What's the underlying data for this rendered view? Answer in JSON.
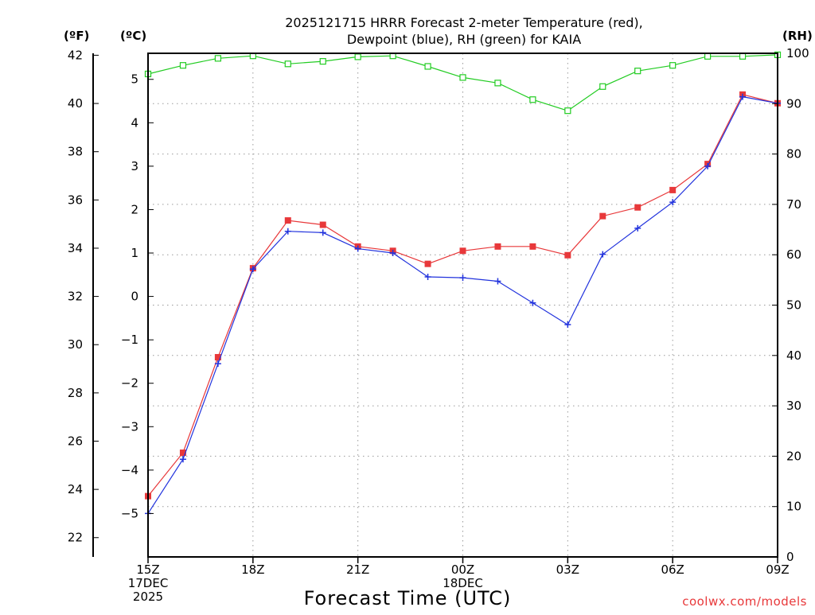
{
  "title_lines": [
    "2025121715 HRRR Forecast 2-meter Temperature (red),",
    "Dewpoint (blue), RH (green) for KAIA"
  ],
  "units": {
    "f": "(ºF)",
    "c": "(ºC)",
    "rh": "(RH)"
  },
  "xlabel": "Forecast Time (UTC)",
  "credit": "coolwx.com/models",
  "colors": {
    "temp": "#e8383a",
    "dewpoint": "#2233dd",
    "rh": "#22cc22"
  },
  "chart_data": {
    "type": "line",
    "title": "2025121715 HRRR Forecast 2-meter Temperature (red), Dewpoint (blue), RH (green) for KAIA",
    "xlabel": "Forecast Time (UTC)",
    "x": [
      "15Z",
      "16Z",
      "17Z",
      "18Z",
      "19Z",
      "20Z",
      "21Z",
      "22Z",
      "23Z",
      "00Z",
      "01Z",
      "02Z",
      "03Z",
      "04Z",
      "05Z",
      "06Z",
      "07Z",
      "08Z",
      "09Z"
    ],
    "x_ticks": [
      {
        "index": 0,
        "lines": [
          "15Z",
          "17DEC",
          "2025"
        ]
      },
      {
        "index": 3,
        "lines": [
          "18Z"
        ]
      },
      {
        "index": 6,
        "lines": [
          "21Z"
        ]
      },
      {
        "index": 9,
        "lines": [
          "00Z",
          "18DEC"
        ]
      },
      {
        "index": 12,
        "lines": [
          "03Z"
        ]
      },
      {
        "index": 15,
        "lines": [
          "06Z"
        ]
      },
      {
        "index": 18,
        "lines": [
          "09Z"
        ]
      }
    ],
    "y_left_c": {
      "label": "(ºC)",
      "ylim": [
        -6.0,
        5.6
      ],
      "ticks": [
        -5,
        -4,
        -3,
        -2,
        -1,
        0,
        1,
        2,
        3,
        4,
        5
      ]
    },
    "y_left_f": {
      "label": "(ºF)",
      "ticks": [
        22,
        24,
        26,
        28,
        30,
        32,
        34,
        36,
        38,
        40,
        42
      ]
    },
    "y_right_rh": {
      "label": "(RH)",
      "ylim": [
        0,
        100
      ],
      "ticks": [
        0,
        10,
        20,
        30,
        40,
        50,
        60,
        70,
        80,
        90,
        100
      ]
    },
    "series": [
      {
        "name": "2-meter Temperature",
        "color": "red",
        "marker": "square-filled",
        "units": "C",
        "values": [
          -4.6,
          -3.6,
          -1.4,
          0.65,
          1.75,
          1.65,
          1.15,
          1.05,
          0.75,
          1.05,
          1.15,
          1.15,
          0.95,
          1.85,
          2.05,
          2.45,
          3.05,
          4.65,
          4.45
        ]
      },
      {
        "name": "Dewpoint",
        "color": "blue",
        "marker": "plus",
        "units": "C",
        "values": [
          -5.0,
          -3.75,
          -1.55,
          0.63,
          1.5,
          1.47,
          1.1,
          1.0,
          0.45,
          0.43,
          0.35,
          -0.15,
          -0.65,
          0.97,
          1.57,
          2.17,
          3.0,
          4.6,
          4.45
        ]
      },
      {
        "name": "RH",
        "color": "green",
        "marker": "square-open",
        "units": "%",
        "values": [
          95.9,
          97.6,
          99.0,
          99.5,
          97.9,
          98.4,
          99.3,
          99.5,
          97.4,
          95.2,
          94.1,
          90.8,
          88.6,
          93.4,
          96.5,
          97.6,
          99.4,
          99.4,
          99.7
        ]
      }
    ]
  }
}
